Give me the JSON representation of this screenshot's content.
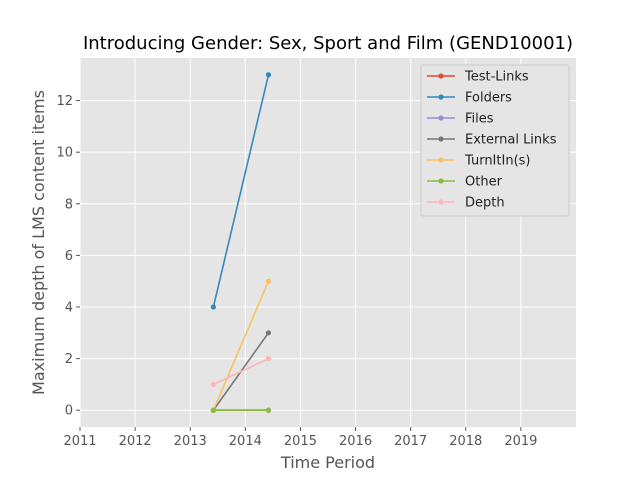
{
  "chart_data": {
    "type": "line",
    "title": "Introducing Gender: Sex, Sport and Film (GEND10001)",
    "xlabel": "Time Period",
    "ylabel": "Maximum depth of LMS content items",
    "xlim": [
      2011,
      2020
    ],
    "ylim": [
      -0.65,
      13.65
    ],
    "x_ticks": [
      "2011",
      "2012",
      "2013",
      "2014",
      "2015",
      "2016",
      "2017",
      "2018",
      "2019"
    ],
    "y_ticks": [
      "0",
      "2",
      "4",
      "6",
      "8",
      "10",
      "12"
    ],
    "grid": true,
    "legend_position": "top-right",
    "x": [
      2013.42,
      2014.42
    ],
    "series": [
      {
        "name": "Test-Links",
        "color": "#E24A33",
        "values": [
          0,
          0
        ]
      },
      {
        "name": "Folders",
        "color": "#348ABD",
        "values": [
          4,
          13
        ]
      },
      {
        "name": "Files",
        "color": "#988ED5",
        "values": [
          0,
          0
        ]
      },
      {
        "name": "External Links",
        "color": "#777777",
        "values": [
          0,
          3
        ]
      },
      {
        "name": "TurnItIn(s)",
        "color": "#FBC15E",
        "values": [
          0,
          5
        ]
      },
      {
        "name": "Other",
        "color": "#8EBA42",
        "values": [
          0,
          0
        ]
      },
      {
        "name": "Depth",
        "color": "#FFB5B8",
        "values": [
          1,
          2
        ]
      }
    ]
  }
}
